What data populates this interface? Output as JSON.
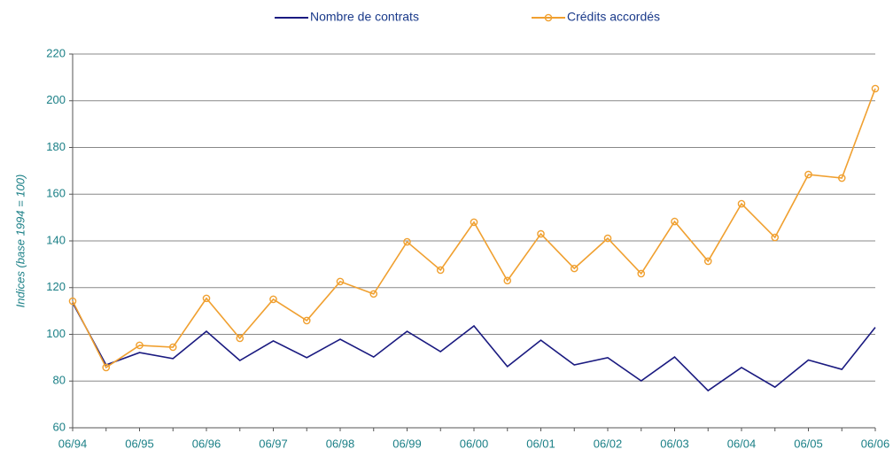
{
  "chart_data": {
    "type": "line",
    "y_label": "Indices (base 1994 = 100)",
    "categories": [
      "06/94",
      null,
      "06/95",
      null,
      "06/96",
      null,
      "06/97",
      null,
      "06/98",
      null,
      "06/99",
      null,
      "06/00",
      null,
      "06/01",
      null,
      "06/02",
      null,
      "06/03",
      null,
      "06/04",
      null,
      "06/05",
      null,
      "06/06"
    ],
    "series": [
      {
        "name": "Nombre de contrats",
        "color": "#1a1a80",
        "marker": false,
        "values": [
          113.5,
          86.9,
          92.2,
          89.6,
          101.3,
          88.8,
          97.2,
          90,
          97.9,
          90.3,
          101.3,
          92.6,
          103.6,
          86.2,
          97.5,
          86.9,
          90,
          80.1,
          90.3,
          75.9,
          85.8,
          77.4,
          89,
          85,
          103
        ]
      },
      {
        "name": "Crédits accordés",
        "color": "#f0a030",
        "marker": true,
        "values": [
          114.2,
          85.8,
          95.3,
          94.5,
          115.4,
          98.3,
          115,
          105.9,
          122.6,
          117.3,
          139.6,
          127.5,
          148,
          123,
          143,
          128.2,
          141.1,
          126,
          148.3,
          131.3,
          155.9,
          141.5,
          168.4,
          166.9,
          205.2
        ]
      }
    ],
    "ylim": [
      60,
      220
    ],
    "yticks": [
      60,
      80,
      100,
      120,
      140,
      160,
      180,
      200,
      220
    ],
    "grid": true,
    "legend": "top"
  }
}
